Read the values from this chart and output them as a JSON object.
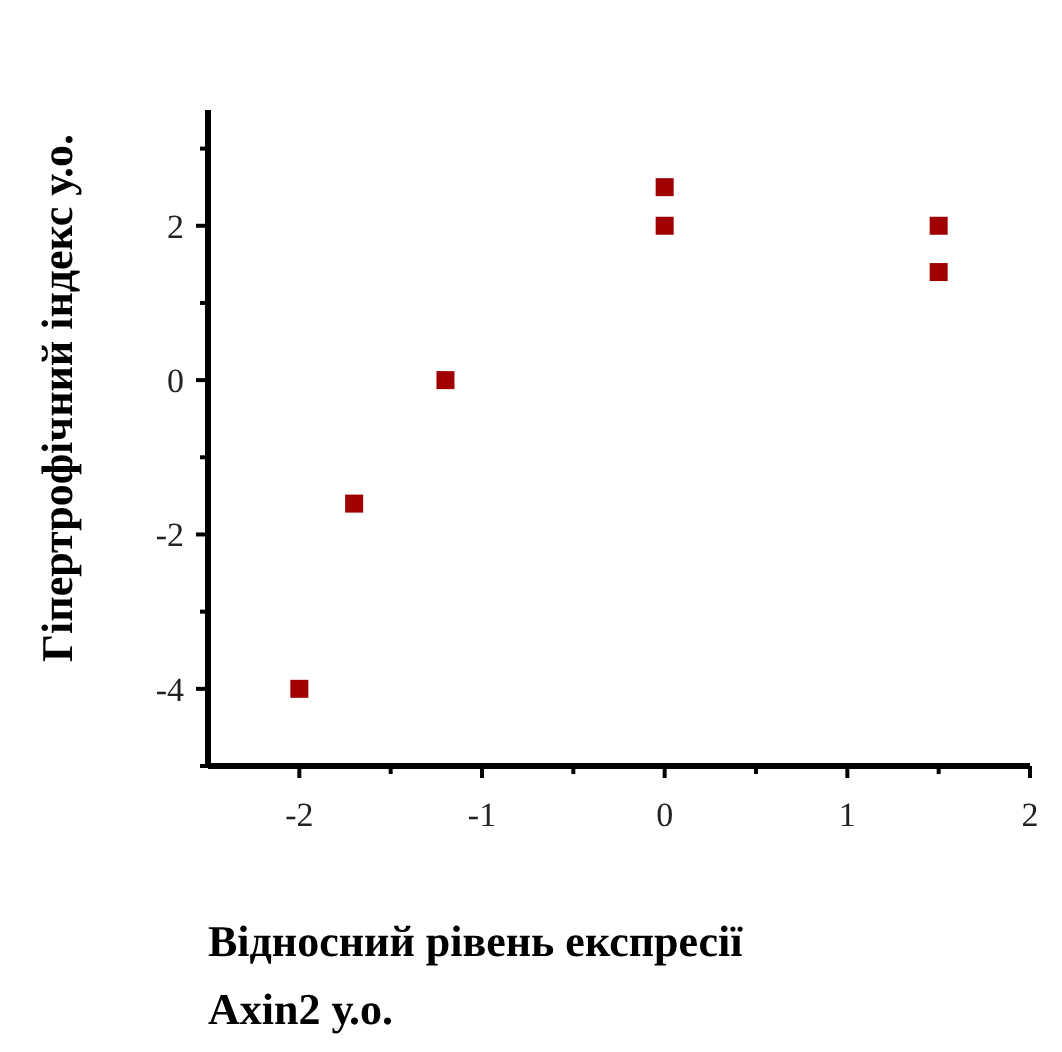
{
  "chart_data": {
    "type": "scatter",
    "xlabel": "Відносний рівень експресії Axin2 у.о.",
    "ylabel": "Гіпертрофічний індекс  у.о.",
    "x": [
      -2,
      -1.7,
      -1.2,
      0,
      0,
      1.5,
      1.5
    ],
    "series": [
      {
        "color": "#a00000",
        "values": [
          -4,
          -1.6,
          0,
          2.5,
          2,
          2,
          1.4
        ]
      }
    ],
    "marker": "square",
    "xlim": [
      -2.5,
      2
    ],
    "xticks": [
      -2,
      {
        "value": -1.5,
        "label": null
      },
      -1,
      {
        "value": -0.5,
        "label": null
      },
      0,
      {
        "value": 0.5,
        "label": null
      },
      1,
      {
        "value": 1.5,
        "label": null
      },
      2
    ],
    "ylim": [
      -5,
      3.5
    ],
    "yticks": [
      {
        "value": -5,
        "label": null
      },
      -4,
      {
        "value": -3,
        "label": null
      },
      -2,
      {
        "value": -1,
        "label": null
      },
      0,
      {
        "value": 1,
        "label": null
      },
      2,
      {
        "value": 3,
        "label": null
      }
    ]
  }
}
